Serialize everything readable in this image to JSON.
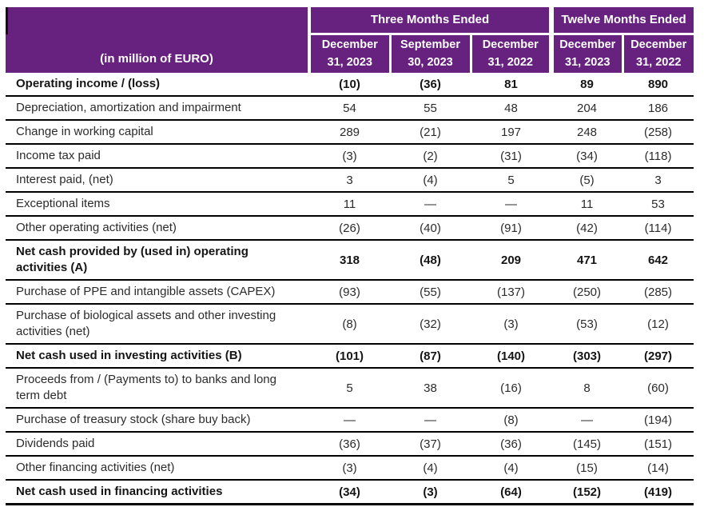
{
  "table": {
    "unit_label": "(in million of EURO)",
    "col_groups": [
      {
        "label": "Three Months Ended",
        "span": 3
      },
      {
        "label": "Twelve Months Ended",
        "span": 2
      }
    ],
    "columns": [
      {
        "line1": "December",
        "line2": "31, 2023"
      },
      {
        "line1": "September",
        "line2": "30, 2023"
      },
      {
        "line1": "December",
        "line2": "31, 2022"
      },
      {
        "line1": "December",
        "line2": "31, 2023"
      },
      {
        "line1": "December",
        "line2": "31, 2022"
      }
    ],
    "rows": [
      {
        "label": "Operating income / (loss)",
        "bold": true,
        "values": [
          "(10)",
          "(36)",
          "81",
          "89",
          "890"
        ]
      },
      {
        "label": "Depreciation, amortization and impairment",
        "bold": false,
        "values": [
          "54",
          "55",
          "48",
          "204",
          "186"
        ]
      },
      {
        "label": "Change in working capital",
        "bold": false,
        "values": [
          "289",
          "(21)",
          "197",
          "248",
          "(258)"
        ]
      },
      {
        "label": "Income tax paid",
        "bold": false,
        "values": [
          "(3)",
          "(2)",
          "(31)",
          "(34)",
          "(118)"
        ]
      },
      {
        "label": "Interest paid, (net)",
        "bold": false,
        "values": [
          "3",
          "(4)",
          "5",
          "(5)",
          "3"
        ]
      },
      {
        "label": "Exceptional items",
        "bold": false,
        "values": [
          "11",
          "—",
          "—",
          "11",
          "53"
        ]
      },
      {
        "label": "Other operating activities (net)",
        "bold": false,
        "values": [
          "(26)",
          "(40)",
          "(91)",
          "(42)",
          "(114)"
        ]
      },
      {
        "label": "Net cash provided by (used in) operating activities (A)",
        "bold": true,
        "values": [
          "318",
          "(48)",
          "209",
          "471",
          "642"
        ]
      },
      {
        "label": "Purchase of PPE and intangible assets (CAPEX)",
        "bold": false,
        "values": [
          "(93)",
          "(55)",
          "(137)",
          "(250)",
          "(285)"
        ]
      },
      {
        "label": "Purchase of biological assets and other investing activities (net)",
        "bold": false,
        "values": [
          "(8)",
          "(32)",
          "(3)",
          "(53)",
          "(12)"
        ]
      },
      {
        "label": "Net cash used in investing activities (B)",
        "bold": true,
        "values": [
          "(101)",
          "(87)",
          "(140)",
          "(303)",
          "(297)"
        ]
      },
      {
        "label": "Proceeds from / (Payments to) to banks and long term debt",
        "bold": false,
        "values": [
          "5",
          "38",
          "(16)",
          "8",
          "(60)"
        ]
      },
      {
        "label": "Purchase of treasury stock (share buy back)",
        "bold": false,
        "values": [
          "—",
          "—",
          "(8)",
          "—",
          "(194)"
        ]
      },
      {
        "label": "Dividends paid",
        "bold": false,
        "values": [
          "(36)",
          "(37)",
          "(36)",
          "(145)",
          "(151)"
        ]
      },
      {
        "label": "Other financing activities (net)",
        "bold": false,
        "values": [
          "(3)",
          "(4)",
          "(4)",
          "(15)",
          "(14)"
        ]
      },
      {
        "label": "Net cash used in financing activities",
        "bold": true,
        "values": [
          "(34)",
          "(3)",
          "(64)",
          "(152)",
          "(419)"
        ]
      }
    ],
    "colors": {
      "header_bg": "#67217F",
      "header_text": "#FFFFFF",
      "row_divider": "#000000"
    }
  }
}
